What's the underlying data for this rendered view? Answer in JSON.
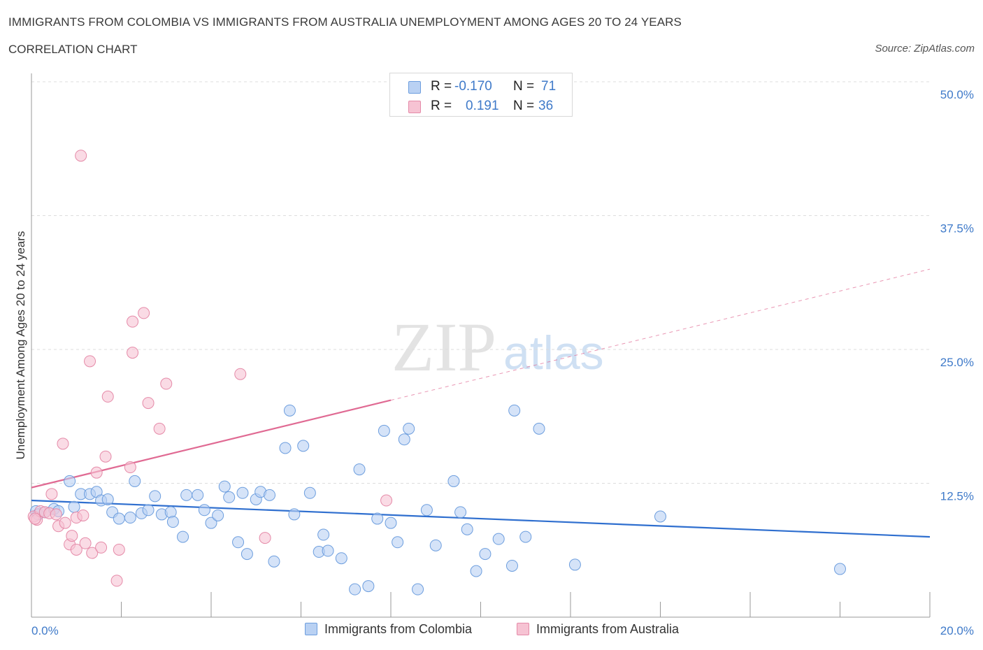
{
  "header": {
    "title": "IMMIGRANTS FROM COLOMBIA VS IMMIGRANTS FROM AUSTRALIA UNEMPLOYMENT AMONG AGES 20 TO 24 YEARS",
    "subtitle": "CORRELATION CHART",
    "source": "Source: ZipAtlas.com"
  },
  "legend": {
    "colombia": {
      "r_label": "R =",
      "r_value": "-0.170",
      "n_label": "N =",
      "n_value": "71"
    },
    "australia": {
      "r_label": "R =",
      "r_value": "0.191",
      "n_label": "N =",
      "n_value": "36"
    }
  },
  "bottom_legend": {
    "colombia": "Immigrants from Colombia",
    "australia": "Immigrants from Australia"
  },
  "colors": {
    "colombia_fill": "#b9d1f3",
    "colombia_stroke": "#6d9ede",
    "colombia_line": "#2f6fcf",
    "australia_fill": "#f6c3d3",
    "australia_stroke": "#e58aa8",
    "australia_line": "#e06a93",
    "tick_text": "#3f7ac9",
    "grid": "#dddddd"
  },
  "chart_data": {
    "type": "scatter",
    "ylabel": "Unemployment Among Ages 20 to 24 years",
    "xlim": [
      0,
      20
    ],
    "ylim": [
      0,
      50
    ],
    "x_tick_labels": [
      "0.0%",
      "20.0%"
    ],
    "y_ticks": [
      12.5,
      25.0,
      37.5,
      50.0
    ],
    "y_tick_labels": [
      "12.5%",
      "25.0%",
      "37.5%",
      "50.0%"
    ],
    "grid": true,
    "watermark": {
      "zip": "ZIP",
      "atlas": "atlas"
    },
    "series": [
      {
        "name": "Immigrants from Colombia",
        "key": "colombia",
        "trend": {
          "x": [
            0,
            20
          ],
          "y": [
            10.9,
            7.5
          ],
          "dashed_from": null
        },
        "points": [
          [
            0.1,
            9.9
          ],
          [
            0.15,
            9.6
          ],
          [
            0.3,
            9.8
          ],
          [
            0.5,
            10.1
          ],
          [
            0.6,
            9.9
          ],
          [
            0.85,
            12.7
          ],
          [
            0.95,
            10.3
          ],
          [
            1.1,
            11.5
          ],
          [
            1.3,
            11.5
          ],
          [
            1.45,
            11.7
          ],
          [
            1.55,
            10.9
          ],
          [
            1.7,
            11.0
          ],
          [
            1.8,
            9.8
          ],
          [
            1.95,
            9.2
          ],
          [
            2.2,
            9.3
          ],
          [
            2.3,
            12.7
          ],
          [
            2.45,
            9.7
          ],
          [
            2.6,
            10.0
          ],
          [
            2.75,
            11.3
          ],
          [
            2.9,
            9.6
          ],
          [
            3.1,
            9.8
          ],
          [
            3.15,
            8.9
          ],
          [
            3.37,
            7.5
          ],
          [
            3.45,
            11.4
          ],
          [
            3.7,
            11.4
          ],
          [
            3.85,
            10.0
          ],
          [
            4.0,
            8.8
          ],
          [
            4.15,
            9.5
          ],
          [
            4.3,
            12.2
          ],
          [
            4.4,
            11.2
          ],
          [
            4.6,
            7.0
          ],
          [
            4.7,
            11.6
          ],
          [
            4.8,
            5.9
          ],
          [
            5.0,
            11.0
          ],
          [
            5.1,
            11.7
          ],
          [
            5.3,
            11.4
          ],
          [
            5.4,
            5.2
          ],
          [
            5.65,
            15.8
          ],
          [
            5.75,
            19.3
          ],
          [
            5.85,
            9.6
          ],
          [
            6.05,
            16.0
          ],
          [
            6.2,
            11.6
          ],
          [
            6.4,
            6.1
          ],
          [
            6.5,
            7.7
          ],
          [
            6.6,
            6.2
          ],
          [
            6.9,
            5.5
          ],
          [
            7.2,
            2.6
          ],
          [
            7.3,
            13.8
          ],
          [
            7.5,
            2.9
          ],
          [
            7.7,
            9.2
          ],
          [
            7.85,
            17.4
          ],
          [
            8.0,
            8.8
          ],
          [
            8.15,
            7.0
          ],
          [
            8.3,
            16.6
          ],
          [
            8.4,
            17.6
          ],
          [
            8.6,
            2.6
          ],
          [
            8.8,
            10.0
          ],
          [
            9.0,
            6.7
          ],
          [
            9.4,
            12.7
          ],
          [
            9.55,
            9.8
          ],
          [
            9.7,
            8.2
          ],
          [
            9.9,
            4.3
          ],
          [
            10.1,
            5.9
          ],
          [
            10.4,
            7.3
          ],
          [
            10.7,
            4.8
          ],
          [
            10.75,
            19.3
          ],
          [
            11.0,
            7.5
          ],
          [
            11.3,
            17.6
          ],
          [
            12.1,
            4.9
          ],
          [
            14.0,
            9.4
          ],
          [
            18.0,
            4.5
          ]
        ]
      },
      {
        "name": "Immigrants from Australia",
        "key": "australia",
        "trend": {
          "x": [
            0,
            20
          ],
          "y": [
            12.1,
            32.5
          ],
          "dashed_from": 8.0
        },
        "points": [
          [
            0.05,
            9.4
          ],
          [
            0.12,
            9.1
          ],
          [
            0.2,
            9.9
          ],
          [
            0.3,
            9.8
          ],
          [
            0.4,
            9.7
          ],
          [
            0.45,
            11.5
          ],
          [
            0.55,
            9.6
          ],
          [
            0.6,
            8.5
          ],
          [
            0.7,
            16.2
          ],
          [
            0.75,
            8.8
          ],
          [
            0.85,
            6.8
          ],
          [
            0.9,
            7.6
          ],
          [
            1.0,
            9.3
          ],
          [
            1.0,
            6.3
          ],
          [
            1.1,
            43.1
          ],
          [
            1.15,
            9.5
          ],
          [
            1.2,
            6.9
          ],
          [
            1.3,
            23.9
          ],
          [
            1.35,
            6.0
          ],
          [
            1.45,
            13.5
          ],
          [
            1.55,
            6.5
          ],
          [
            1.65,
            15.0
          ],
          [
            1.7,
            20.6
          ],
          [
            1.9,
            3.4
          ],
          [
            1.95,
            6.3
          ],
          [
            2.2,
            14.0
          ],
          [
            2.25,
            24.7
          ],
          [
            2.25,
            27.6
          ],
          [
            2.5,
            28.4
          ],
          [
            2.6,
            20.0
          ],
          [
            2.85,
            17.6
          ],
          [
            3.0,
            21.8
          ],
          [
            4.65,
            22.7
          ],
          [
            5.2,
            7.4
          ],
          [
            7.9,
            10.9
          ],
          [
            0.08,
            9.2
          ]
        ]
      }
    ]
  }
}
